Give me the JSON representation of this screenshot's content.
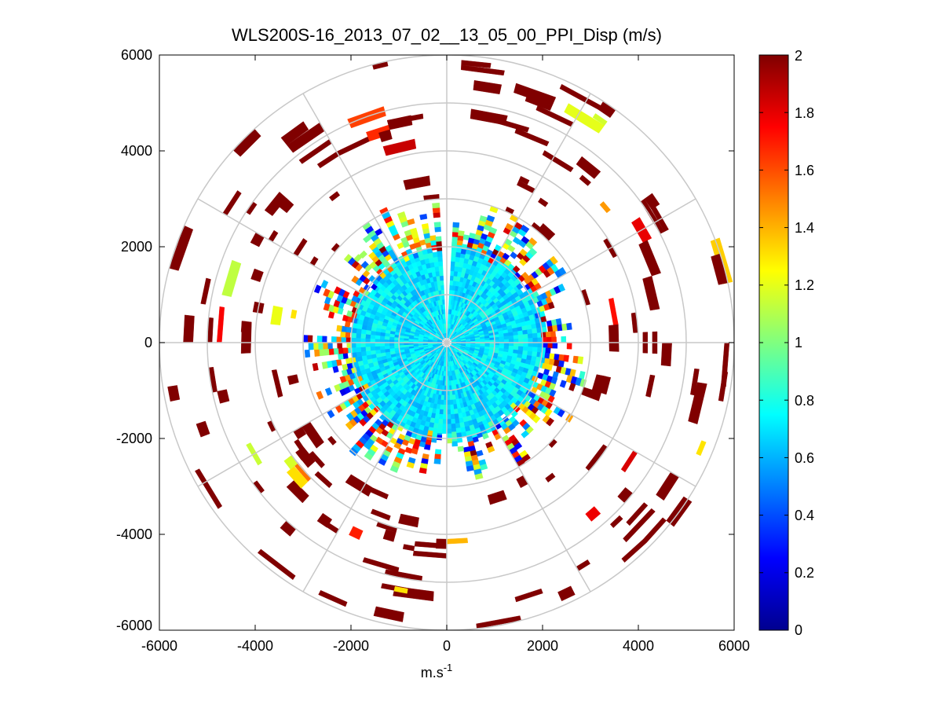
{
  "chart_data": {
    "type": "heatmap",
    "subtype": "polar-ppi",
    "title": "WLS200S-16_2013_07_02__13_05_00_PPI_Disp (m/s)",
    "xlabel": "m.s",
    "xlabel_sup": "-1",
    "ylabel": "",
    "xlim": [
      -6000,
      6000
    ],
    "ylim": [
      -6000,
      6000
    ],
    "xticks": [
      -6000,
      -4000,
      -2000,
      0,
      2000,
      4000,
      6000
    ],
    "yticks": [
      6000,
      4000,
      2000,
      0,
      -2000,
      -4000,
      -6000
    ],
    "range_rings": [
      1000,
      2000,
      3000,
      4000,
      5000,
      6000
    ],
    "spokes_deg": [
      0,
      30,
      60,
      90,
      120,
      150,
      180,
      210,
      240,
      270,
      300,
      330
    ],
    "colorbar": {
      "min": 0,
      "max": 2,
      "ticks": [
        "0",
        "0.2",
        "0.4",
        "0.6",
        "0.8",
        "1",
        "1.2",
        "1.4",
        "1.6",
        "1.8",
        "2"
      ]
    },
    "data_description": {
      "inner_core": {
        "range_m": [
          0,
          2000
        ],
        "typical_value": 0.7
      },
      "transition_ring": {
        "range_m": [
          2000,
          3000
        ],
        "typical_value_range": [
          0.2,
          2
        ]
      },
      "outer_sparse": {
        "range_m": [
          3000,
          6000
        ],
        "typical_value": 2,
        "note": "scattered values, mostly saturated at max"
      }
    }
  }
}
